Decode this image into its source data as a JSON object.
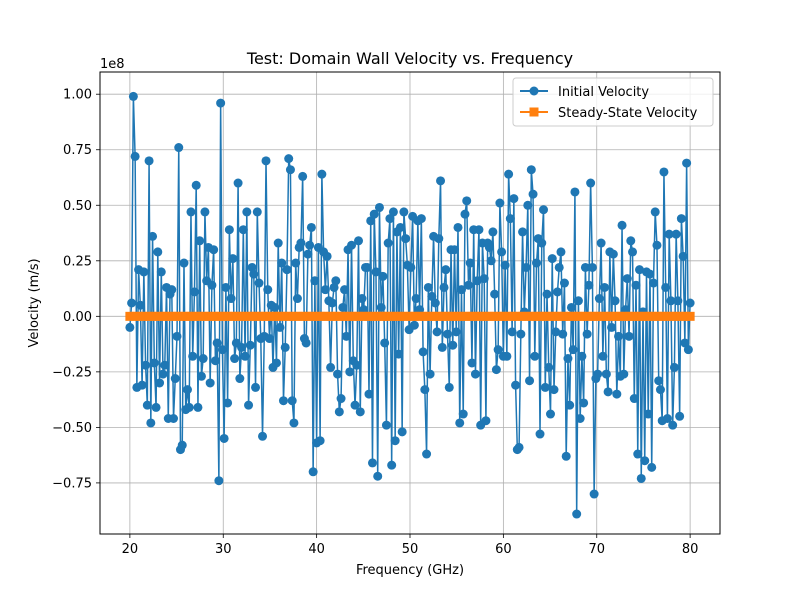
{
  "chart_data": {
    "type": "line",
    "title": "Test: Domain Wall Velocity vs. Frequency",
    "xlabel": "Frequency (GHz)",
    "ylabel": "Velocity (m/s)",
    "y_offset_label": "1e8",
    "xlim": [
      16.8,
      83.2
    ],
    "ylim": [
      -0.98,
      1.1
    ],
    "x_ticks": [
      20,
      30,
      40,
      50,
      60,
      70,
      80
    ],
    "y_ticks": [
      -0.75,
      -0.5,
      -0.25,
      0.0,
      0.25,
      0.5,
      0.75,
      1.0
    ],
    "x_tick_labels": [
      "20",
      "30",
      "40",
      "50",
      "60",
      "70",
      "80"
    ],
    "y_tick_labels": [
      "−0.75",
      "−0.50",
      "−0.25",
      "0.00",
      "0.25",
      "0.50",
      "0.75",
      "1.00"
    ],
    "grid": true,
    "legend_position": "top-right",
    "x_start": 20,
    "x_end": 80,
    "series": [
      {
        "name": "Initial Velocity",
        "color": "#1f77b4",
        "marker": "circle",
        "values": [
          -0.05,
          0.06,
          0.99,
          0.72,
          -0.32,
          0.21,
          0.05,
          -0.31,
          0.2,
          -0.22,
          -0.4,
          0.7,
          -0.48,
          0.36,
          -0.21,
          -0.41,
          0.29,
          -0.3,
          0.2,
          -0.26,
          -0.22,
          0.13,
          -0.46,
          0.1,
          0.12,
          -0.46,
          -0.28,
          -0.09,
          0.76,
          -0.6,
          -0.58,
          0.24,
          -0.42,
          -0.33,
          -0.41,
          0.47,
          -0.18,
          0.11,
          0.59,
          -0.41,
          0.34,
          -0.27,
          -0.19,
          0.47,
          0.16,
          0.31,
          -0.3,
          0.14,
          0.3,
          -0.2,
          -0.12,
          -0.74,
          0.96,
          -0.15,
          -0.55,
          0.13,
          -0.39,
          0.39,
          0.08,
          0.26,
          -0.19,
          -0.12,
          0.6,
          -0.28,
          -0.14,
          0.39,
          -0.18,
          0.47,
          -0.4,
          -0.13,
          0.22,
          0.19,
          -0.32,
          0.47,
          0.15,
          -0.1,
          -0.54,
          -0.09,
          0.7,
          0.12,
          -0.1,
          0.05,
          -0.23,
          0.04,
          -0.21,
          0.33,
          -0.05,
          0.24,
          -0.38,
          -0.14,
          0.21,
          0.71,
          0.66,
          -0.38,
          -0.48,
          0.24,
          0.08,
          0.31,
          0.33,
          0.63,
          -0.1,
          -0.12,
          0.28,
          0.32,
          0.4,
          -0.7,
          0.16,
          -0.57,
          0.31,
          -0.56,
          0.64,
          0.29,
          0.12,
          0.27,
          0.07,
          -0.23,
          0.06,
          0.13,
          0.16,
          -0.26,
          -0.43,
          -0.37,
          0.04,
          0.12,
          -0.09,
          0.3,
          -0.25,
          0.32,
          -0.2,
          -0.4,
          -0.22,
          0.34,
          -0.43,
          0.08,
          0.03,
          0.22,
          0.22,
          -0.35,
          0.43,
          -0.66,
          0.46,
          0.2,
          -0.72,
          0.49,
          0.04,
          0.18,
          -0.12,
          -0.49,
          0.33,
          0.44,
          -0.67,
          0.47,
          -0.56,
          0.38,
          -0.17,
          0.4,
          -0.52,
          0.47,
          0.35,
          0.23,
          -0.06,
          0.22,
          0.45,
          -0.04,
          0.08,
          0.43,
          0.03,
          0.44,
          -0.16,
          -0.33,
          -0.62,
          0.13,
          -0.26,
          0.09,
          0.36,
          0.06,
          -0.07,
          0.35,
          0.61,
          -0.14,
          0.13,
          0.21,
          -0.08,
          -0.32,
          0.3,
          -0.13,
          0.3,
          -0.07,
          0.4,
          -0.48,
          0.12,
          -0.44,
          0.46,
          0.52,
          0.14,
          0.24,
          -0.21,
          0.39,
          -0.26,
          0.16,
          0.39,
          -0.49,
          0.33,
          0.17,
          -0.47,
          0.33,
          0.31,
          0.25,
          0.38,
          0.1,
          -0.24,
          -0.15,
          0.51,
          0.29,
          -0.18,
          0.23,
          -0.18,
          0.64,
          0.44,
          -0.07,
          0.53,
          -0.31,
          -0.6,
          -0.59,
          -0.08,
          0.38,
          0.02,
          0.22,
          0.5,
          -0.29,
          0.66,
          0.55,
          -0.18,
          0.24,
          0.35,
          -0.53,
          0.33,
          0.48,
          -0.32,
          0.1,
          -0.23,
          -0.44,
          0.26,
          -0.33,
          -0.07,
          0.11,
          0.22,
          0.29,
          -0.08,
          0.15,
          -0.63,
          -0.19,
          -0.4,
          0.04,
          -0.15,
          0.56,
          -0.89,
          0.07,
          -0.46,
          -0.18,
          -0.39,
          0.22,
          -0.08,
          0.14,
          0.6,
          0.22,
          -0.8,
          -0.28,
          -0.26,
          0.08,
          0.33,
          -0.18,
          0.13,
          -0.26,
          -0.34,
          0.29,
          -0.05,
          0.28,
          0.07,
          -0.35,
          -0.09,
          -0.27,
          0.41,
          -0.26,
          0.03,
          0.17,
          -0.09,
          0.34,
          0.29,
          -0.37,
          0.14,
          -0.62,
          0.21,
          -0.73,
          0.02,
          -0.65,
          0.2,
          -0.44,
          0.19,
          -0.68,
          0.15,
          0.47,
          0.32,
          -0.29,
          -0.33,
          -0.47,
          0.65,
          0.13,
          -0.46,
          0.37,
          0.07,
          -0.49,
          -0.23,
          0.37,
          0.07,
          -0.45,
          0.44,
          0.27,
          -0.12,
          0.69,
          -0.15,
          0.06
        ]
      },
      {
        "name": "Steady-State Velocity",
        "color": "#ff7f0e",
        "marker": "square",
        "value": 0.0,
        "count": 121
      }
    ]
  }
}
